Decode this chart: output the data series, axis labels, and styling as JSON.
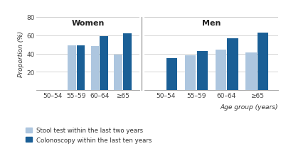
{
  "women": {
    "categories": [
      "50–54",
      "55–59",
      "60–64",
      "≥65"
    ],
    "stool": [
      0,
      49,
      48,
      39
    ],
    "colonoscopy": [
      0,
      49,
      59,
      62
    ]
  },
  "men": {
    "categories": [
      "50–54",
      "55–59",
      "60–64",
      "≥65"
    ],
    "stool": [
      0,
      38,
      44,
      41
    ],
    "colonoscopy": [
      35,
      43,
      57,
      63
    ]
  },
  "color_stool": "#adc6df",
  "color_colonoscopy": "#1a5f96",
  "ylabel": "Proportion (%)",
  "xlabel": "Age group (years)",
  "ylim": [
    0,
    80
  ],
  "yticks": [
    20,
    40,
    60,
    80
  ],
  "legend_stool": "Stool test within the last two years",
  "legend_colonoscopy": "Colonoscopy within the last ten years",
  "title_women": "Women",
  "title_men": "Men",
  "background_color": "#ffffff",
  "grid_color": "#cccccc"
}
